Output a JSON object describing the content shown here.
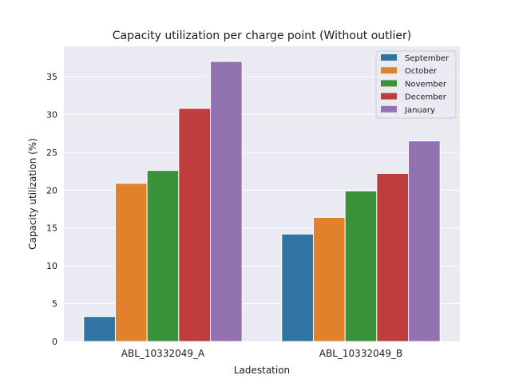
{
  "chart_data": {
    "type": "bar",
    "title": "Capacity utilization per charge point (Without outlier)",
    "xlabel": "Ladestation",
    "ylabel": "Capacity utilization (%)",
    "categories": [
      "ABL_10332049_A",
      "ABL_10332049_B"
    ],
    "ylim": [
      0,
      39
    ],
    "yticks": [
      0,
      5,
      10,
      15,
      20,
      25,
      30,
      35
    ],
    "grid": true,
    "legend_position": "top-right",
    "series": [
      {
        "name": "September",
        "color": "#3274a1",
        "values": [
          3.3,
          14.2
        ]
      },
      {
        "name": "October",
        "color": "#e1812c",
        "values": [
          20.9,
          16.4
        ]
      },
      {
        "name": "November",
        "color": "#3a923a",
        "values": [
          22.6,
          19.9
        ]
      },
      {
        "name": "December",
        "color": "#c03d3e",
        "values": [
          30.8,
          22.2
        ]
      },
      {
        "name": "January",
        "color": "#9372b2",
        "values": [
          37.0,
          26.5
        ]
      }
    ]
  }
}
